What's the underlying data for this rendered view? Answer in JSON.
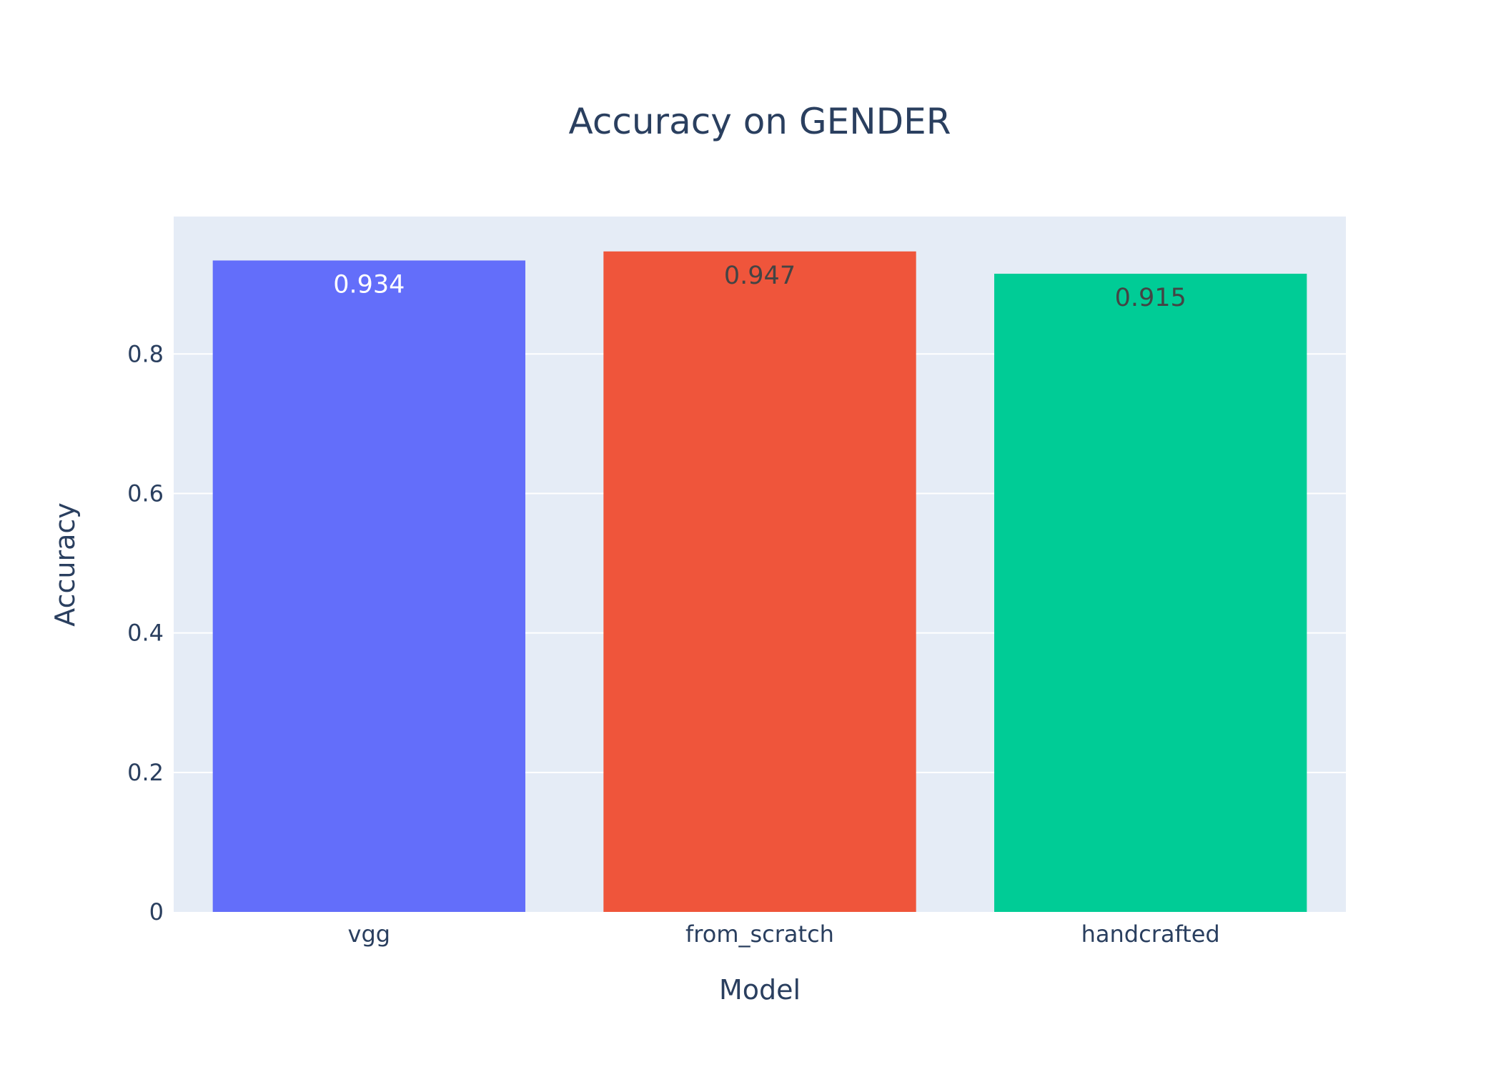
{
  "chart_data": {
    "type": "bar",
    "title": "Accuracy on GENDER",
    "xlabel": "Model",
    "ylabel": "Accuracy",
    "categories": [
      "vgg",
      "from_scratch",
      "handcrafted"
    ],
    "values": [
      0.934,
      0.947,
      0.915
    ],
    "data_labels": [
      "0.934",
      "0.947",
      "0.915"
    ],
    "bar_colors": [
      "#636efa",
      "#ef553b",
      "#00cc96"
    ],
    "data_label_colors": [
      "#ffffff",
      "#444444",
      "#444444"
    ],
    "ylim": [
      0,
      0.997
    ],
    "yticks": [
      0,
      0.2,
      0.4,
      0.6,
      0.8
    ],
    "ytick_labels": [
      "0",
      "0.2",
      "0.4",
      "0.6",
      "0.8"
    ],
    "grid": true,
    "legend": "none",
    "plot_background": "#e5ecf6",
    "text_color": "#2a3f5f"
  }
}
